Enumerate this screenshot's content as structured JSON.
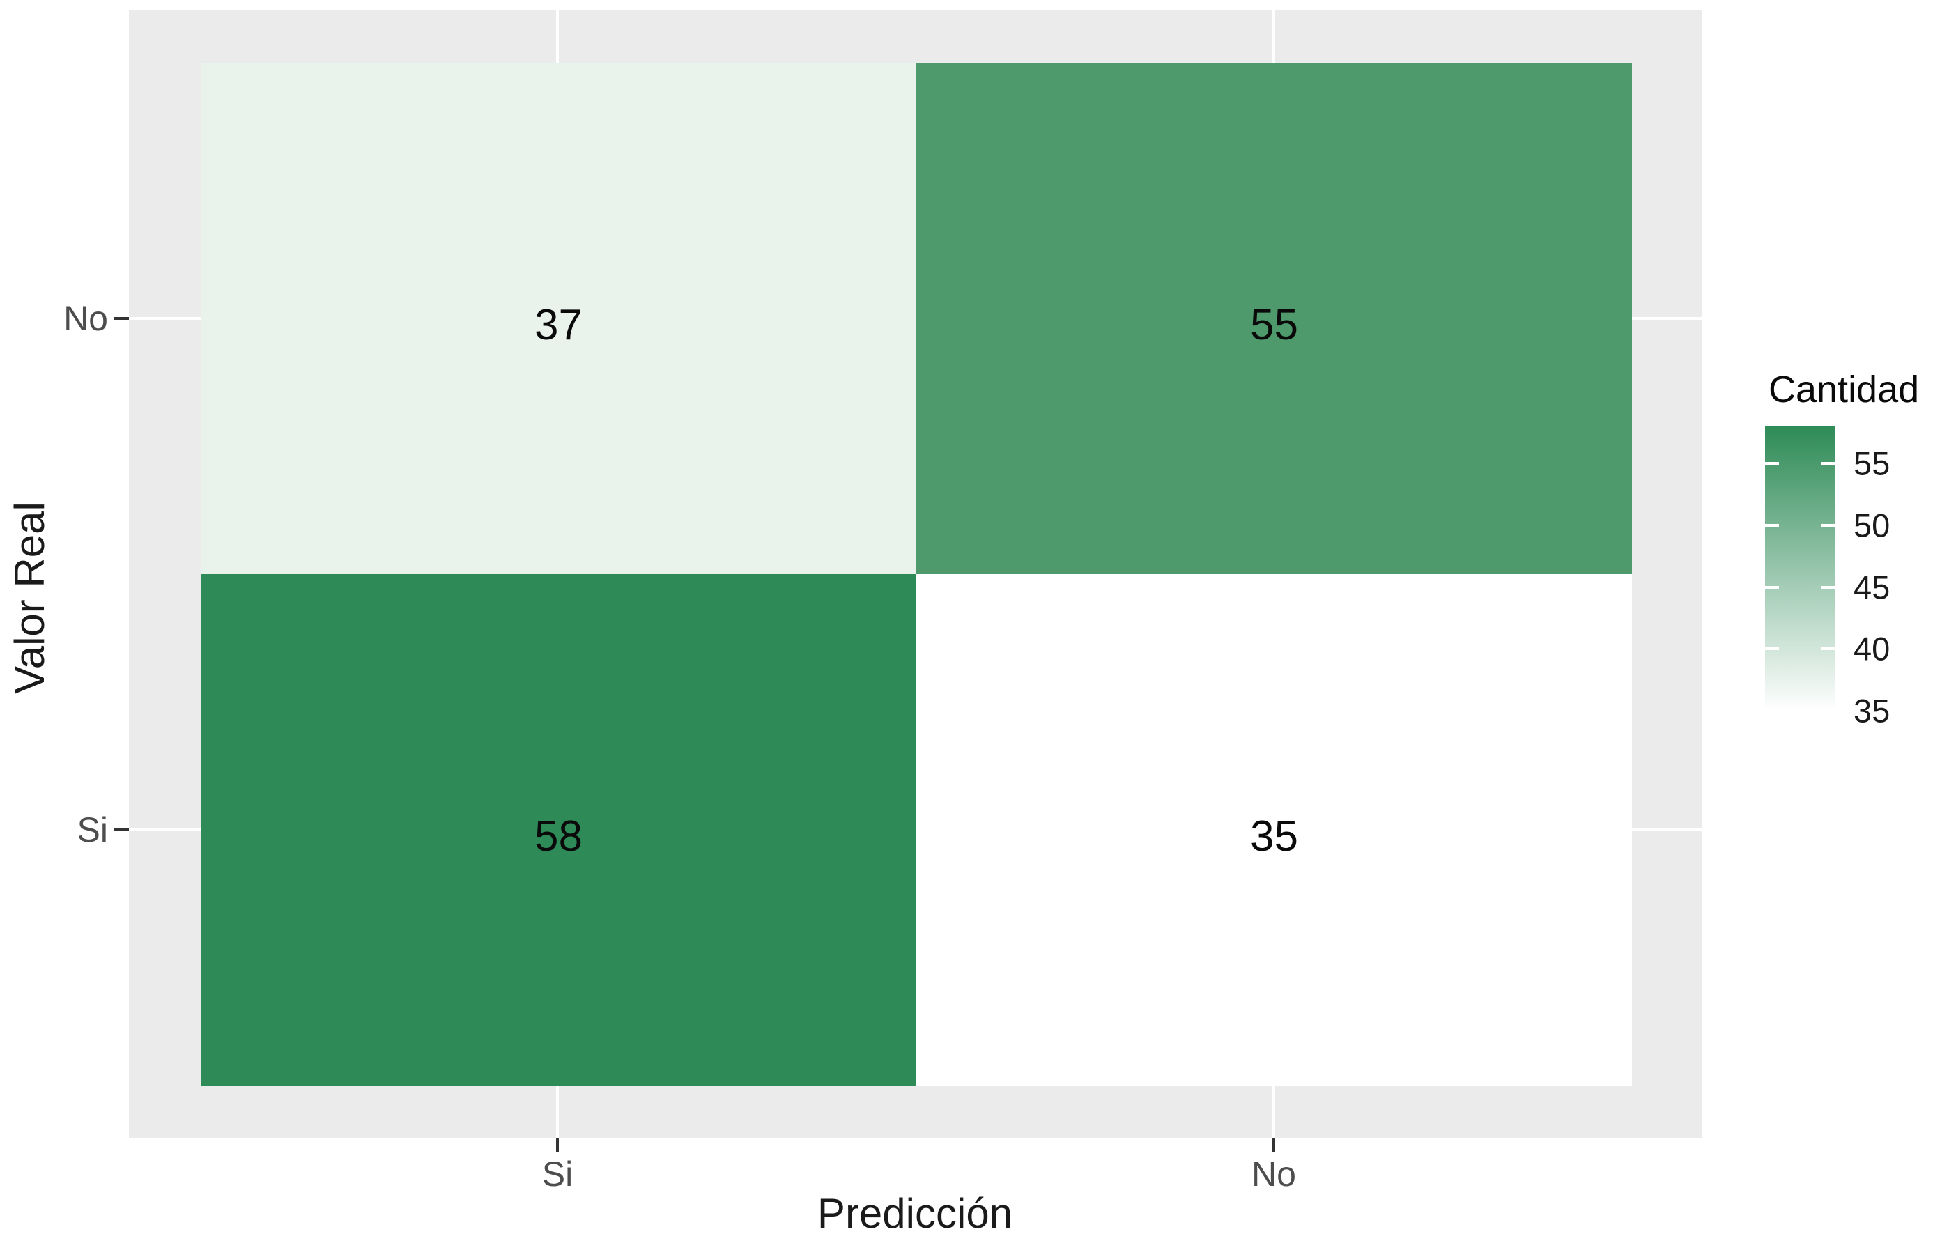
{
  "chart_data": {
    "type": "heatmap",
    "title": "",
    "xlabel": "Predicción",
    "ylabel": "Valor Real",
    "x_categories": [
      "Si",
      "No"
    ],
    "y_categories": [
      "No",
      "Si"
    ],
    "cells": [
      {
        "real": "No",
        "pred": "Si",
        "value": "37",
        "color": "#e9f3ec"
      },
      {
        "real": "No",
        "pred": "No",
        "value": "55",
        "color": "#4e9a6c"
      },
      {
        "real": "Si",
        "pred": "Si",
        "value": "58",
        "color": "#2e8b57"
      },
      {
        "real": "Si",
        "pred": "No",
        "value": "35",
        "color": "#ffffff"
      }
    ],
    "legend": {
      "title": "Cantidad",
      "position": "right",
      "breaks": [
        "55",
        "50",
        "45",
        "40",
        "35"
      ],
      "range": [
        35,
        58
      ],
      "low_color": "#ffffff",
      "high_color": "#2e8b57"
    },
    "panel_background": "#ebebeb",
    "grid": "off",
    "value_text_color": "#0a0a0a",
    "tick_label_color": "#4d4d4d"
  }
}
